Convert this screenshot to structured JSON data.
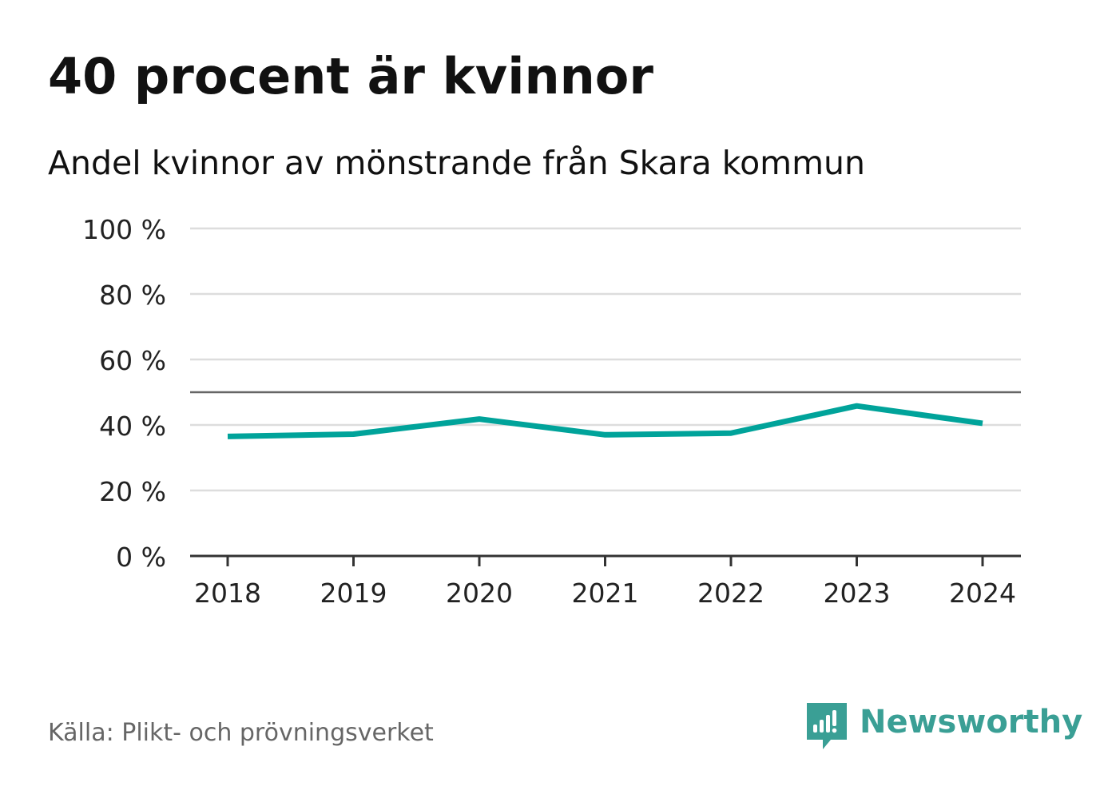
{
  "header": {
    "title": "40 procent är kvinnor",
    "subtitle": "Andel kvinnor av mönstrande från Skara kommun"
  },
  "footer": {
    "source": "Källa: Plikt- och prövningsverket",
    "brand": "Newsworthy"
  },
  "colors": {
    "line": "#00a39a",
    "brand": "#3a9f95",
    "grid": "#dddddd",
    "reference": "#666666",
    "axis": "#333333"
  },
  "chart_data": {
    "type": "line",
    "title": "40 procent är kvinnor",
    "subtitle": "Andel kvinnor av mönstrande från Skara kommun",
    "x": [
      "2018",
      "2019",
      "2020",
      "2021",
      "2022",
      "2023",
      "2024"
    ],
    "series": [
      {
        "name": "Andel kvinnor",
        "values": [
          36.5,
          37.2,
          41.8,
          37.0,
          37.5,
          45.8,
          40.5
        ]
      }
    ],
    "reference_line": 50,
    "ylim": [
      0,
      100
    ],
    "yticks": [
      0,
      20,
      40,
      60,
      80,
      100
    ],
    "ytick_labels": [
      "0 %",
      "20 %",
      "40 %",
      "60 %",
      "80 %",
      "100 %"
    ],
    "xlabel": "",
    "ylabel": "",
    "grid": true,
    "legend": "none"
  }
}
